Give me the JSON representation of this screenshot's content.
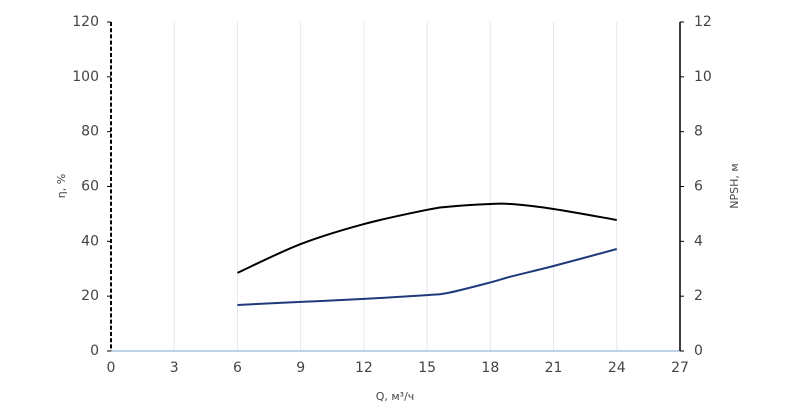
{
  "chart_data": {
    "type": "line",
    "x_label": "Q, м³/ч",
    "y_label": "η, %",
    "y2_label": "NPSH, м",
    "x": [
      6,
      9,
      12,
      15,
      16,
      18,
      19,
      21,
      24
    ],
    "series": [
      {
        "color": "#000000",
        "values": [
          28.5,
          39,
          46.3,
          51.5,
          52.6,
          53.6,
          53.6,
          51.8,
          47.8
        ]
      },
      {
        "color": "#1f3a7a",
        "axis": "y2",
        "values": [
          1.68,
          1.79,
          1.9,
          2.04,
          2.12,
          2.5,
          2.72,
          3.1,
          3.72
        ]
      }
    ],
    "xlim": [
      0,
      27
    ],
    "xticks": [
      0,
      3,
      6,
      9,
      12,
      15,
      18,
      21,
      24,
      27
    ],
    "ylim": [
      0,
      120
    ],
    "yticks": [
      0,
      20,
      40,
      60,
      80,
      100,
      120
    ],
    "y2lim": [
      0,
      12
    ],
    "y2ticks": [
      0,
      2,
      4,
      6,
      8,
      10,
      12
    ],
    "grid": true
  }
}
